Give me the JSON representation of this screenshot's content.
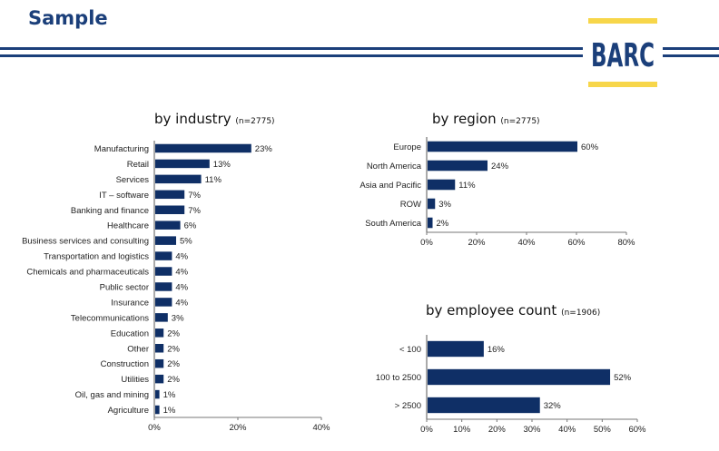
{
  "header": {
    "title": "Sample",
    "logo_text": "BARC",
    "colors": {
      "primary": "#1b3f7a",
      "bar": "#0f2f66",
      "logo_yellow": "#f7d64a"
    }
  },
  "chart_data": [
    {
      "type": "bar",
      "orientation": "horizontal",
      "title": "by industry",
      "subtitle": "(n=2775)",
      "categories": [
        "Manufacturing",
        "Retail",
        "Services",
        "IT – software",
        "Banking and finance",
        "Healthcare",
        "Business services and consulting",
        "Transportation and logistics",
        "Chemicals and pharmaceuticals",
        "Public sector",
        "Insurance",
        "Telecommunications",
        "Education",
        "Other",
        "Construction",
        "Utilities",
        "Oil, gas and mining",
        "Agriculture"
      ],
      "values": [
        23,
        13,
        11,
        7,
        7,
        6,
        5,
        4,
        4,
        4,
        4,
        3,
        2,
        2,
        2,
        2,
        1,
        1
      ],
      "value_labels": [
        "23%",
        "13%",
        "11%",
        "7%",
        "7%",
        "6%",
        "5%",
        "4%",
        "4%",
        "4%",
        "4%",
        "3%",
        "2%",
        "2%",
        "2%",
        "2%",
        "1%",
        "1%"
      ],
      "xlim": [
        0,
        40
      ],
      "xticks": [
        "0%",
        "20%",
        "40%"
      ]
    },
    {
      "type": "bar",
      "orientation": "horizontal",
      "title": "by region",
      "subtitle": "(n=2775)",
      "categories": [
        "Europe",
        "North America",
        "Asia and Pacific",
        "ROW",
        "South America"
      ],
      "values": [
        60,
        24,
        11,
        3,
        2
      ],
      "value_labels": [
        "60%",
        "24%",
        "11%",
        "3%",
        "2%"
      ],
      "xlim": [
        0,
        80
      ],
      "xticks": [
        "0%",
        "20%",
        "40%",
        "60%",
        "80%"
      ]
    },
    {
      "type": "bar",
      "orientation": "horizontal",
      "title": "by employee count",
      "subtitle": "(n=1906)",
      "categories": [
        "< 100",
        "100 to 2500",
        "> 2500"
      ],
      "values": [
        16,
        52,
        32
      ],
      "value_labels": [
        "16%",
        "52%",
        "32%"
      ],
      "xlim": [
        0,
        60
      ],
      "xticks": [
        "0%",
        "10%",
        "20%",
        "30%",
        "40%",
        "50%",
        "60%"
      ]
    }
  ]
}
